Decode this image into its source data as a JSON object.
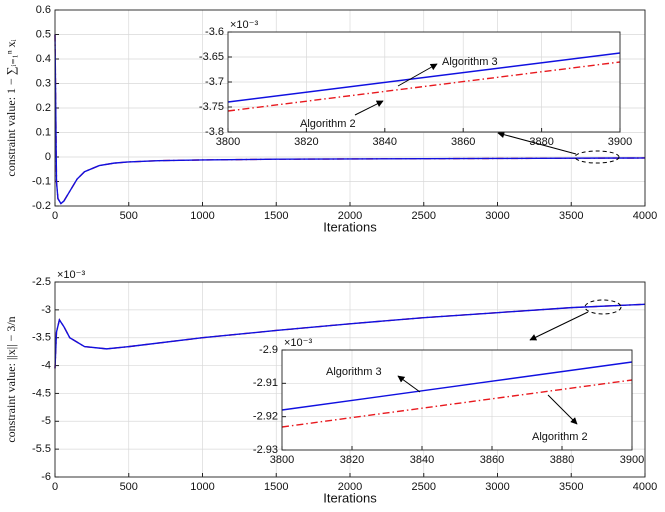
{
  "chart_data": [
    {
      "type": "line",
      "xlabel": "Iterations",
      "ylabel": "constraint value: 1 − ∑ᵢ₌₁ⁿ xᵢ",
      "x": [
        0,
        10,
        20,
        40,
        60,
        100,
        150,
        200,
        300,
        400,
        500,
        700,
        1000,
        1500,
        2000,
        2500,
        3000,
        3500,
        4000
      ],
      "series": [
        {
          "color": "#e8191e",
          "linestyle": "dashdot",
          "values": [
            0.5,
            -0.1,
            -0.17,
            -0.19,
            -0.18,
            -0.14,
            -0.09,
            -0.06,
            -0.035,
            -0.025,
            -0.02,
            -0.015,
            -0.012,
            -0.009,
            -0.008,
            -0.007,
            -0.006,
            -0.005,
            -0.004
          ]
        },
        {
          "color": "#1010e0",
          "linestyle": "solid",
          "values": [
            0.5,
            -0.1,
            -0.17,
            -0.19,
            -0.18,
            -0.14,
            -0.09,
            -0.06,
            -0.035,
            -0.025,
            -0.02,
            -0.015,
            -0.012,
            -0.009,
            -0.008,
            -0.007,
            -0.006,
            -0.005,
            -0.004
          ]
        }
      ],
      "xlim": [
        0,
        4000
      ],
      "ylim": [
        -0.2,
        0.6
      ],
      "xticks": [
        0,
        500,
        1000,
        1500,
        2000,
        2500,
        3000,
        3500,
        4000
      ],
      "yticks": [
        -0.2,
        -0.1,
        0,
        0.1,
        0.2,
        0.3,
        0.4,
        0.5,
        0.6
      ],
      "grid": true
    },
    {
      "type": "line",
      "y_multiplier": "×10⁻³",
      "x": [
        3800,
        3900
      ],
      "series": [
        {
          "name": "Algorithm 2",
          "color": "#e8191e",
          "linestyle": "dashdot",
          "values": [
            -3.758,
            -3.66
          ]
        },
        {
          "name": "Algorithm 3",
          "color": "#1010e0",
          "linestyle": "solid",
          "values": [
            -3.74,
            -3.642
          ]
        }
      ],
      "xlim": [
        3800,
        3900
      ],
      "ylim": [
        -3.8,
        -3.6
      ],
      "xticks": [
        3800,
        3820,
        3840,
        3860,
        3880,
        3900
      ],
      "yticks": [
        -3.8,
        -3.75,
        -3.7,
        -3.65,
        -3.6
      ],
      "grid": true
    },
    {
      "type": "line",
      "xlabel": "Iterations",
      "ylabel": "constraint value: ||x|| − 3/n",
      "y_multiplier": "×10⁻³",
      "x": [
        0,
        10,
        30,
        60,
        100,
        200,
        350,
        500,
        1000,
        1500,
        2000,
        2500,
        3000,
        3500,
        4000
      ],
      "series": [
        {
          "color": "#e8191e",
          "linestyle": "dashdot",
          "values": [
            -4.05,
            -3.4,
            -3.18,
            -3.3,
            -3.5,
            -3.66,
            -3.7,
            -3.66,
            -3.5,
            -3.37,
            -3.25,
            -3.14,
            -3.05,
            -2.96,
            -2.9
          ]
        },
        {
          "color": "#1010e0",
          "linestyle": "solid",
          "values": [
            -4.05,
            -3.4,
            -3.18,
            -3.3,
            -3.5,
            -3.66,
            -3.7,
            -3.66,
            -3.5,
            -3.37,
            -3.25,
            -3.14,
            -3.05,
            -2.96,
            -2.9
          ]
        }
      ],
      "xlim": [
        0,
        4000
      ],
      "ylim": [
        -6,
        -2.5
      ],
      "xticks": [
        0,
        500,
        1000,
        1500,
        2000,
        2500,
        3000,
        3500,
        4000
      ],
      "yticks": [
        -6,
        -5.5,
        -5,
        -4.5,
        -4,
        -3.5,
        -3,
        -2.5
      ],
      "grid": true
    },
    {
      "type": "line",
      "y_multiplier": "×10⁻³",
      "x": [
        3800,
        3900
      ],
      "series": [
        {
          "name": "Algorithm 2",
          "color": "#e8191e",
          "linestyle": "dashdot",
          "values": [
            -2.9231,
            -2.909
          ]
        },
        {
          "name": "Algorithm 3",
          "color": "#1010e0",
          "linestyle": "solid",
          "values": [
            -2.918,
            -2.9036
          ]
        }
      ],
      "xlim": [
        3800,
        3900
      ],
      "ylim": [
        -2.93,
        -2.9
      ],
      "xticks": [
        3800,
        3820,
        3840,
        3860,
        3880,
        3900
      ],
      "yticks": [
        -2.93,
        -2.92,
        -2.91,
        -2.9
      ],
      "grid": true
    }
  ]
}
